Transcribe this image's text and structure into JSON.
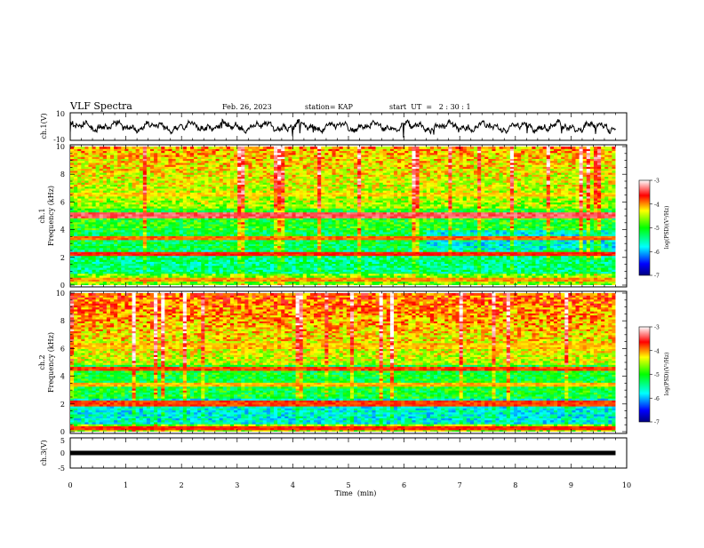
{
  "header": {
    "title": "VLF Spectra",
    "date": "Feb. 26, 2023",
    "station": "station= KAP",
    "start_ut": "start  UT  =   2 : 30 : 1"
  },
  "colorbar": {
    "label": "log(PSD)(V²/Hz)",
    "ticks": [
      "-3",
      "-4",
      "-5",
      "-6",
      "-7"
    ],
    "range": [
      -7,
      -3
    ]
  },
  "chart_data": [
    {
      "type": "line",
      "name": "ch1-waveform",
      "ylabel": "ch.1(V)",
      "ylim": [
        -10,
        10
      ],
      "yticks": [
        "10",
        "-10"
      ],
      "xlim": [
        0,
        10
      ],
      "x_end_min": 9.8
    },
    {
      "type": "heatmap",
      "name": "ch1-spectrogram",
      "ylabel": "ch.1\nFrequency (kHz)",
      "ylim": [
        0,
        10
      ],
      "yticks": [
        "0",
        "2",
        "4",
        "6",
        "8",
        "10"
      ],
      "xlim": [
        0,
        10
      ],
      "bands_khz": [
        {
          "f": 5.1,
          "level": -3.4
        },
        {
          "f": 2.3,
          "level": -3.7
        },
        {
          "f": 3.4,
          "level": -3.9
        },
        {
          "f": 0.4,
          "level": -4.0
        },
        {
          "f": 6.6,
          "level": -4.2
        }
      ]
    },
    {
      "type": "heatmap",
      "name": "ch2-spectrogram",
      "ylabel": "ch.2\nFrequency (kHz)",
      "ylim": [
        0,
        10
      ],
      "yticks": [
        "0",
        "2",
        "4",
        "6",
        "8",
        "10"
      ],
      "xlim": [
        0,
        10
      ],
      "bands_khz": [
        {
          "f": 4.6,
          "level": -3.8
        },
        {
          "f": 2.1,
          "level": -3.8
        },
        {
          "f": 0.3,
          "level": -3.7
        },
        {
          "f": 6.2,
          "level": -4.2
        },
        {
          "f": 3.4,
          "level": -4.1
        }
      ]
    },
    {
      "type": "line",
      "name": "ch3-waveform",
      "ylabel": "ch.3(V)",
      "ylim": [
        -5,
        5
      ],
      "yticks": [
        "5",
        "0",
        "-5"
      ],
      "xlim": [
        0,
        10
      ],
      "level_v": 0
    }
  ],
  "xaxis": {
    "label": "Time  (min)",
    "ticks": [
      "0",
      "1",
      "2",
      "3",
      "4",
      "5",
      "6",
      "7",
      "8",
      "9",
      "10"
    ]
  }
}
